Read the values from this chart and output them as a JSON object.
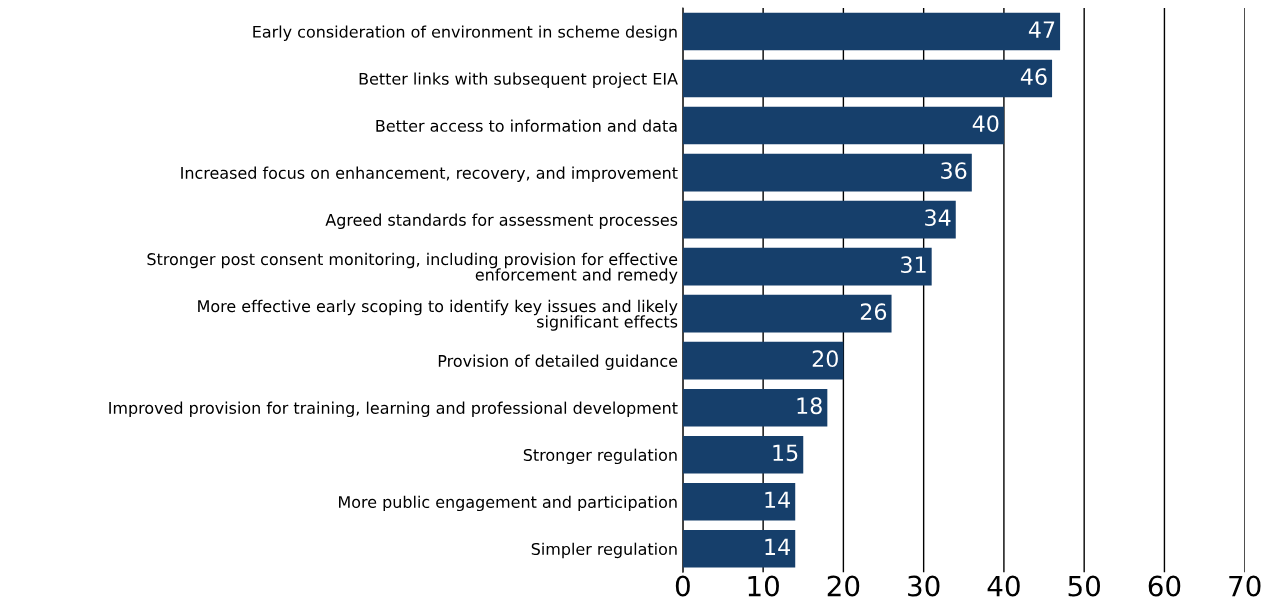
{
  "chart_data": {
    "type": "bar",
    "orientation": "horizontal",
    "categories": [
      "Early consideration of environment in scheme design",
      "Better links with subsequent project EIA",
      "Better access to information and data",
      "Increased focus on enhancement, recovery, and improvement",
      "Agreed standards for assessment processes",
      "Stronger post consent monitoring, including provision for effective\nenforcement and remedy",
      "More effective early scoping to identify key issues and likely\nsignificant effects",
      "Provision of detailed guidance",
      "Improved provision for training, learning and professional development",
      "Stronger regulation",
      "More public engagement and participation",
      "Simpler regulation"
    ],
    "values": [
      47,
      46,
      40,
      36,
      34,
      31,
      26,
      20,
      18,
      15,
      14,
      14
    ],
    "color": "#163f6b",
    "xlim": [
      0,
      70
    ],
    "xticks": [
      0,
      10,
      20,
      30,
      40,
      50,
      60,
      70
    ],
    "grid": "x",
    "data_labels": true
  }
}
